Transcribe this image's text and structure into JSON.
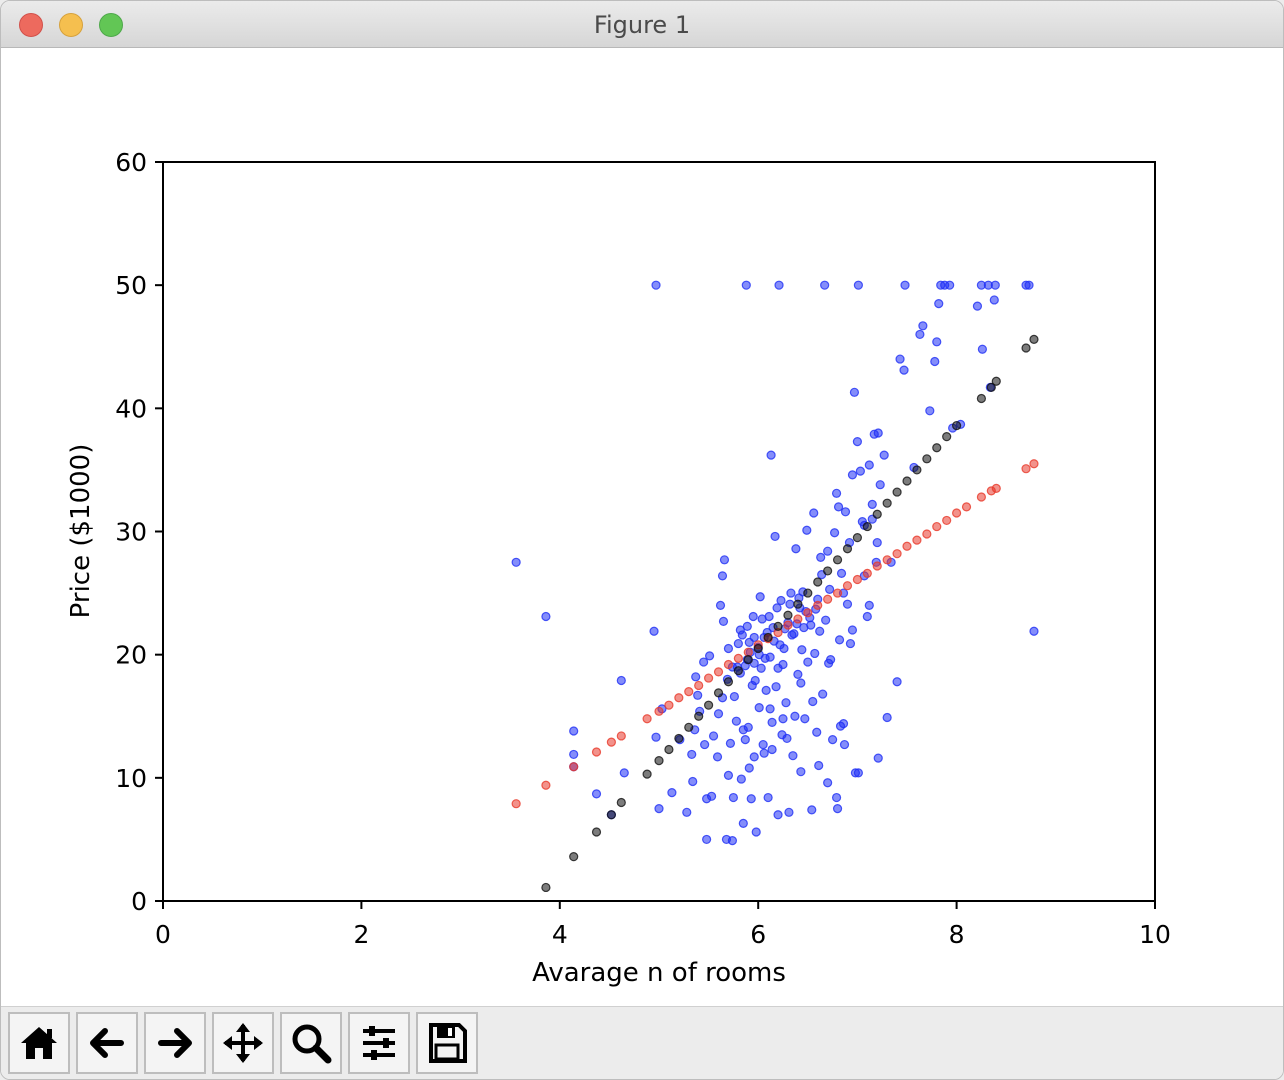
{
  "window": {
    "title": "Figure 1"
  },
  "toolbar": {
    "buttons": [
      {
        "name": "home",
        "icon": "home-icon"
      },
      {
        "name": "back",
        "icon": "arrow-left-icon"
      },
      {
        "name": "forward",
        "icon": "arrow-right-icon"
      },
      {
        "name": "pan",
        "icon": "move-icon"
      },
      {
        "name": "zoom",
        "icon": "magnifier-icon"
      },
      {
        "name": "subplots",
        "icon": "sliders-icon"
      },
      {
        "name": "save",
        "icon": "floppy-disk-icon"
      }
    ]
  },
  "colors": {
    "observed": "#1f2ff5",
    "fit_a": "#e8392b",
    "fit_b": "#111111"
  },
  "chart_data": {
    "type": "scatter",
    "title": "",
    "xlabel": "Avarage n of rooms",
    "ylabel": "Price ($1000)",
    "xlim": [
      0,
      10
    ],
    "ylim": [
      0,
      60
    ],
    "xticks": [
      "0",
      "2",
      "4",
      "6",
      "8",
      "10"
    ],
    "yticks": [
      "0",
      "10",
      "20",
      "30",
      "40",
      "50",
      "60"
    ],
    "grid": false,
    "legend": "none",
    "series": [
      {
        "color": "#1f2ff5",
        "points": [
          [
            3.56,
            27.5
          ],
          [
            3.86,
            23.1
          ],
          [
            4.14,
            13.8
          ],
          [
            4.14,
            11.9
          ],
          [
            4.14,
            10.9
          ],
          [
            4.37,
            8.7
          ],
          [
            4.52,
            7.0
          ],
          [
            4.62,
            17.9
          ],
          [
            4.65,
            10.4
          ],
          [
            4.95,
            21.9
          ],
          [
            4.97,
            50.0
          ],
          [
            4.97,
            13.3
          ],
          [
            5.0,
            7.5
          ],
          [
            5.03,
            15.6
          ],
          [
            5.13,
            8.8
          ],
          [
            5.21,
            13.1
          ],
          [
            5.28,
            7.2
          ],
          [
            5.33,
            11.9
          ],
          [
            5.34,
            9.7
          ],
          [
            5.36,
            13.9
          ],
          [
            5.37,
            18.2
          ],
          [
            5.39,
            16.7
          ],
          [
            5.41,
            15.4
          ],
          [
            5.45,
            19.4
          ],
          [
            5.46,
            12.7
          ],
          [
            5.48,
            5.0
          ],
          [
            5.51,
            19.9
          ],
          [
            5.53,
            8.5
          ],
          [
            5.55,
            13.4
          ],
          [
            5.59,
            11.7
          ],
          [
            5.6,
            15.2
          ],
          [
            5.62,
            24.0
          ],
          [
            5.65,
            22.7
          ],
          [
            5.68,
            5.0
          ],
          [
            5.69,
            18.0
          ],
          [
            5.7,
            10.2
          ],
          [
            5.72,
            12.8
          ],
          [
            5.75,
            8.4
          ],
          [
            5.76,
            16.6
          ],
          [
            5.79,
            19.0
          ],
          [
            5.82,
            22.0
          ],
          [
            5.83,
            9.9
          ],
          [
            5.85,
            6.3
          ],
          [
            5.87,
            13.1
          ],
          [
            5.88,
            50.0
          ],
          [
            5.89,
            19.6
          ],
          [
            5.9,
            14.1
          ],
          [
            5.91,
            21.0
          ],
          [
            5.93,
            8.3
          ],
          [
            5.94,
            17.5
          ],
          [
            5.95,
            23.1
          ],
          [
            5.96,
            19.3
          ],
          [
            5.98,
            5.6
          ],
          [
            6.0,
            20.6
          ],
          [
            6.01,
            15.7
          ],
          [
            6.02,
            24.7
          ],
          [
            6.05,
            12.7
          ],
          [
            6.06,
            21.4
          ],
          [
            6.08,
            17.1
          ],
          [
            6.1,
            8.4
          ],
          [
            6.12,
            19.8
          ],
          [
            6.13,
            36.2
          ],
          [
            6.14,
            14.5
          ],
          [
            6.15,
            22.2
          ],
          [
            6.17,
            29.6
          ],
          [
            6.2,
            18.9
          ],
          [
            6.21,
            50.0
          ],
          [
            6.23,
            24.4
          ],
          [
            6.24,
            13.5
          ],
          [
            6.26,
            20.5
          ],
          [
            6.28,
            16.1
          ],
          [
            6.3,
            22.6
          ],
          [
            6.31,
            7.2
          ],
          [
            6.33,
            25.0
          ],
          [
            6.35,
            11.8
          ],
          [
            6.36,
            21.7
          ],
          [
            6.38,
            28.6
          ],
          [
            6.4,
            18.4
          ],
          [
            6.42,
            23.8
          ],
          [
            6.43,
            10.5
          ],
          [
            6.45,
            25.1
          ],
          [
            6.47,
            14.8
          ],
          [
            6.49,
            30.1
          ],
          [
            6.5,
            19.4
          ],
          [
            6.52,
            23.0
          ],
          [
            6.54,
            7.4
          ],
          [
            6.56,
            31.5
          ],
          [
            6.57,
            20.1
          ],
          [
            6.6,
            24.5
          ],
          [
            6.61,
            11.0
          ],
          [
            6.63,
            27.9
          ],
          [
            6.65,
            16.8
          ],
          [
            6.67,
            50.0
          ],
          [
            6.68,
            22.8
          ],
          [
            6.7,
            28.4
          ],
          [
            6.72,
            25.3
          ],
          [
            6.73,
            19.6
          ],
          [
            6.75,
            13.1
          ],
          [
            6.77,
            29.9
          ],
          [
            6.79,
            33.1
          ],
          [
            6.8,
            7.5
          ],
          [
            6.82,
            21.2
          ],
          [
            6.84,
            26.6
          ],
          [
            6.86,
            14.4
          ],
          [
            6.88,
            31.6
          ],
          [
            6.9,
            24.1
          ],
          [
            6.92,
            29.1
          ],
          [
            6.95,
            22.0
          ],
          [
            6.97,
            41.3
          ],
          [
            6.98,
            10.4
          ],
          [
            7.0,
            37.3
          ],
          [
            7.01,
            50.0
          ],
          [
            7.03,
            34.9
          ],
          [
            7.05,
            30.8
          ],
          [
            7.07,
            26.4
          ],
          [
            7.1,
            23.1
          ],
          [
            7.12,
            35.4
          ],
          [
            7.15,
            32.2
          ],
          [
            7.17,
            37.9
          ],
          [
            7.2,
            29.1
          ],
          [
            7.23,
            33.8
          ],
          [
            7.27,
            36.2
          ],
          [
            7.3,
            14.9
          ],
          [
            7.34,
            27.5
          ],
          [
            7.4,
            17.8
          ],
          [
            7.43,
            44.0
          ],
          [
            7.47,
            43.1
          ],
          [
            7.48,
            50.0
          ],
          [
            7.57,
            35.2
          ],
          [
            7.63,
            46.0
          ],
          [
            7.66,
            46.7
          ],
          [
            7.73,
            39.8
          ],
          [
            7.78,
            43.8
          ],
          [
            7.8,
            45.4
          ],
          [
            7.82,
            48.5
          ],
          [
            7.84,
            50.0
          ],
          [
            7.88,
            50.0
          ],
          [
            7.93,
            50.0
          ],
          [
            7.96,
            38.4
          ],
          [
            8.04,
            38.7
          ],
          [
            8.21,
            48.3
          ],
          [
            8.25,
            50.0
          ],
          [
            8.26,
            44.8
          ],
          [
            8.32,
            50.0
          ],
          [
            8.34,
            41.7
          ],
          [
            8.38,
            48.8
          ],
          [
            8.39,
            50.0
          ],
          [
            8.7,
            50.0
          ],
          [
            8.73,
            50.0
          ],
          [
            8.78,
            21.9
          ],
          [
            5.7,
            20.5
          ],
          [
            5.74,
            19.0
          ],
          [
            5.8,
            20.9
          ],
          [
            5.84,
            21.6
          ],
          [
            5.87,
            19.1
          ],
          [
            5.92,
            20.2
          ],
          [
            5.96,
            21.4
          ],
          [
            6.01,
            20.0
          ],
          [
            6.04,
            22.9
          ],
          [
            6.07,
            19.7
          ],
          [
            6.11,
            23.1
          ],
          [
            6.16,
            21.1
          ],
          [
            6.19,
            23.8
          ],
          [
            6.22,
            20.8
          ],
          [
            6.27,
            22.1
          ],
          [
            6.32,
            24.1
          ],
          [
            6.34,
            21.6
          ],
          [
            6.39,
            22.5
          ],
          [
            6.41,
            24.6
          ],
          [
            6.46,
            22.2
          ],
          [
            6.48,
            23.5
          ],
          [
            6.53,
            22.4
          ],
          [
            6.58,
            23.7
          ],
          [
            6.62,
            21.9
          ],
          [
            5.82,
            18.5
          ],
          [
            5.89,
            22.3
          ],
          [
            5.97,
            17.9
          ],
          [
            6.03,
            18.9
          ],
          [
            6.09,
            21.8
          ],
          [
            6.18,
            17.4
          ],
          [
            6.25,
            19.2
          ],
          [
            6.44,
            20.4
          ],
          [
            6.37,
            15.0
          ],
          [
            6.55,
            16.2
          ],
          [
            5.78,
            14.6
          ],
          [
            6.14,
            12.3
          ],
          [
            6.29,
            13.2
          ],
          [
            6.59,
            13.7
          ],
          [
            6.83,
            14.2
          ],
          [
            6.87,
            12.7
          ],
          [
            7.21,
            11.6
          ],
          [
            7.01,
            10.4
          ],
          [
            6.7,
            9.6
          ],
          [
            6.79,
            8.4
          ],
          [
            6.2,
            7.0
          ],
          [
            5.74,
            4.9
          ],
          [
            5.91,
            10.8
          ],
          [
            6.06,
            12.0
          ],
          [
            6.25,
            14.8
          ],
          [
            5.96,
            11.7
          ],
          [
            5.48,
            8.3
          ],
          [
            5.64,
            16.5
          ],
          [
            5.85,
            13.9
          ],
          [
            6.12,
            15.6
          ],
          [
            6.43,
            17.7
          ],
          [
            6.71,
            19.3
          ],
          [
            6.93,
            20.9
          ],
          [
            7.12,
            24.0
          ],
          [
            7.07,
            30.5
          ],
          [
            7.19,
            27.5
          ],
          [
            6.86,
            25.0
          ],
          [
            6.64,
            26.5
          ],
          [
            6.81,
            32.0
          ],
          [
            6.95,
            34.6
          ],
          [
            7.21,
            38.0
          ],
          [
            7.15,
            31.0
          ],
          [
            5.64,
            26.4
          ],
          [
            5.66,
            27.7
          ]
        ]
      },
      {
        "color": "#e8392b",
        "points": [
          [
            3.56,
            7.9
          ],
          [
            3.86,
            9.4
          ],
          [
            4.14,
            10.9
          ],
          [
            4.37,
            12.1
          ],
          [
            4.52,
            12.9
          ],
          [
            4.62,
            13.4
          ],
          [
            4.88,
            14.8
          ],
          [
            5.0,
            15.4
          ],
          [
            5.1,
            15.9
          ],
          [
            5.2,
            16.5
          ],
          [
            5.3,
            17.0
          ],
          [
            5.4,
            17.5
          ],
          [
            5.5,
            18.1
          ],
          [
            5.6,
            18.6
          ],
          [
            5.7,
            19.2
          ],
          [
            5.8,
            19.7
          ],
          [
            5.9,
            20.2
          ],
          [
            6.0,
            20.8
          ],
          [
            6.1,
            21.3
          ],
          [
            6.2,
            21.8
          ],
          [
            6.3,
            22.4
          ],
          [
            6.4,
            22.9
          ],
          [
            6.5,
            23.4
          ],
          [
            6.6,
            24.0
          ],
          [
            6.7,
            24.5
          ],
          [
            6.8,
            25.0
          ],
          [
            6.9,
            25.6
          ],
          [
            7.0,
            26.1
          ],
          [
            7.1,
            26.6
          ],
          [
            7.2,
            27.2
          ],
          [
            7.3,
            27.7
          ],
          [
            7.4,
            28.2
          ],
          [
            7.5,
            28.8
          ],
          [
            7.6,
            29.3
          ],
          [
            7.7,
            29.8
          ],
          [
            7.8,
            30.4
          ],
          [
            7.9,
            30.9
          ],
          [
            8.0,
            31.5
          ],
          [
            8.1,
            32.0
          ],
          [
            8.25,
            32.8
          ],
          [
            8.35,
            33.3
          ],
          [
            8.4,
            33.5
          ],
          [
            8.7,
            35.1
          ],
          [
            8.78,
            35.5
          ]
        ]
      },
      {
        "color": "#111111",
        "points": [
          [
            3.86,
            1.1
          ],
          [
            4.14,
            3.6
          ],
          [
            4.37,
            5.6
          ],
          [
            4.52,
            7.0
          ],
          [
            4.62,
            8.0
          ],
          [
            4.88,
            10.3
          ],
          [
            5.0,
            11.4
          ],
          [
            5.1,
            12.3
          ],
          [
            5.2,
            13.2
          ],
          [
            5.3,
            14.1
          ],
          [
            5.4,
            15.0
          ],
          [
            5.5,
            15.9
          ],
          [
            5.6,
            16.9
          ],
          [
            5.7,
            17.8
          ],
          [
            5.8,
            18.7
          ],
          [
            5.9,
            19.6
          ],
          [
            6.0,
            20.5
          ],
          [
            6.1,
            21.4
          ],
          [
            6.2,
            22.3
          ],
          [
            6.3,
            23.2
          ],
          [
            6.4,
            24.1
          ],
          [
            6.5,
            25.0
          ],
          [
            6.6,
            25.9
          ],
          [
            6.7,
            26.8
          ],
          [
            6.8,
            27.7
          ],
          [
            6.9,
            28.6
          ],
          [
            7.0,
            29.5
          ],
          [
            7.1,
            30.4
          ],
          [
            7.2,
            31.4
          ],
          [
            7.3,
            32.3
          ],
          [
            7.4,
            33.2
          ],
          [
            7.5,
            34.1
          ],
          [
            7.6,
            35.0
          ],
          [
            7.7,
            35.9
          ],
          [
            7.8,
            36.8
          ],
          [
            7.9,
            37.7
          ],
          [
            8.0,
            38.6
          ],
          [
            8.25,
            40.8
          ],
          [
            8.35,
            41.7
          ],
          [
            8.4,
            42.2
          ],
          [
            8.7,
            44.9
          ],
          [
            8.78,
            45.6
          ]
        ]
      }
    ]
  }
}
